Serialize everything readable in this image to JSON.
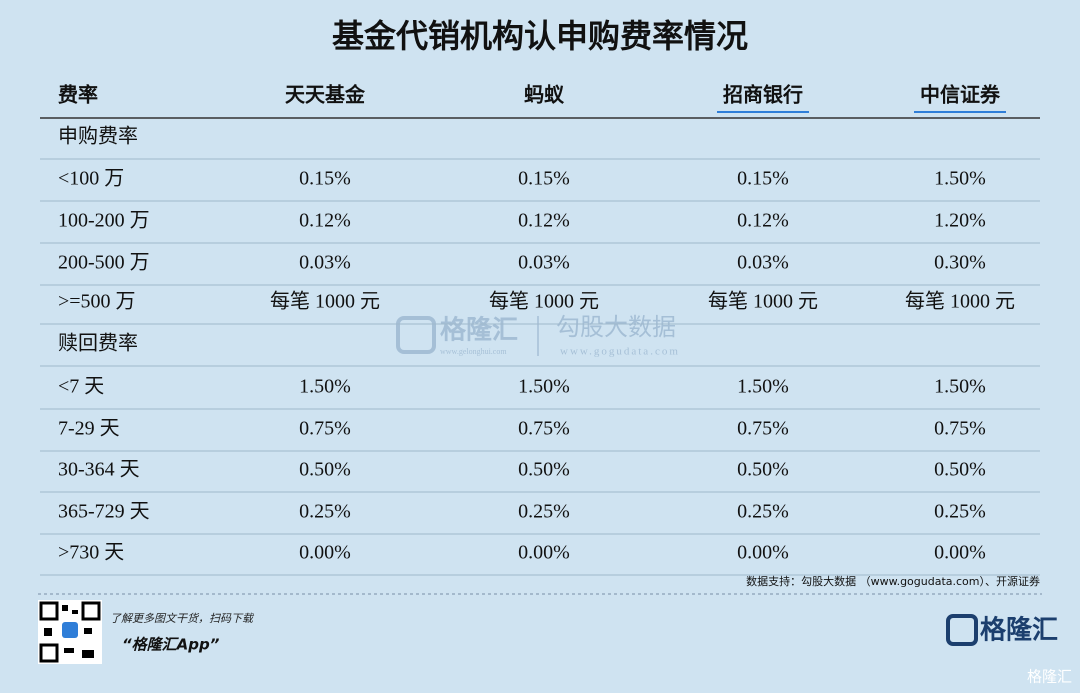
{
  "title": "基金代销机构认申购费率情况",
  "table": {
    "header": [
      "费率",
      "天天基金",
      "蚂蚁",
      "招商银行",
      "中信证券"
    ],
    "rows": [
      [
        "申购费率"
      ],
      [
        "<100 万",
        "0.15%",
        "0.15%",
        "0.15%",
        "1.50%"
      ],
      [
        "100-200 万",
        "0.12%",
        "0.12%",
        "0.12%",
        "1.20%"
      ],
      [
        "200-500 万",
        "0.03%",
        "0.03%",
        "0.03%",
        "0.30%"
      ],
      [
        ">=500 万",
        "每笔 1000 元",
        "每笔 1000 元",
        "每笔 1000 元",
        "每笔 1000 元"
      ],
      [
        "赎回费率"
      ],
      [
        "<7 天",
        "1.50%",
        "1.50%",
        "1.50%",
        "1.50%"
      ],
      [
        "7-29 天",
        "0.75%",
        "0.75%",
        "0.75%",
        "0.75%"
      ],
      [
        "30-364 天",
        "0.50%",
        "0.50%",
        "0.50%",
        "0.50%"
      ],
      [
        "365-729 天",
        "0.25%",
        "0.25%",
        "0.25%",
        "0.25%"
      ],
      [
        ">730 天",
        "0.00%",
        "0.00%",
        "0.00%",
        "0.00%"
      ]
    ]
  },
  "source": "数据支持：勾股大数据 （www.gogudata.com）、开源证券",
  "watermark": {
    "brand": "格隆汇",
    "brand_url": "www.gelonghui.com",
    "data_brand": "勾股大数据",
    "data_url": "www.gogudata.com"
  },
  "footer": {
    "prompt": "了解更多图文干货，扫码下载",
    "app": "“格隆汇App”",
    "logo": "格隆汇",
    "corner": "格隆汇"
  }
}
